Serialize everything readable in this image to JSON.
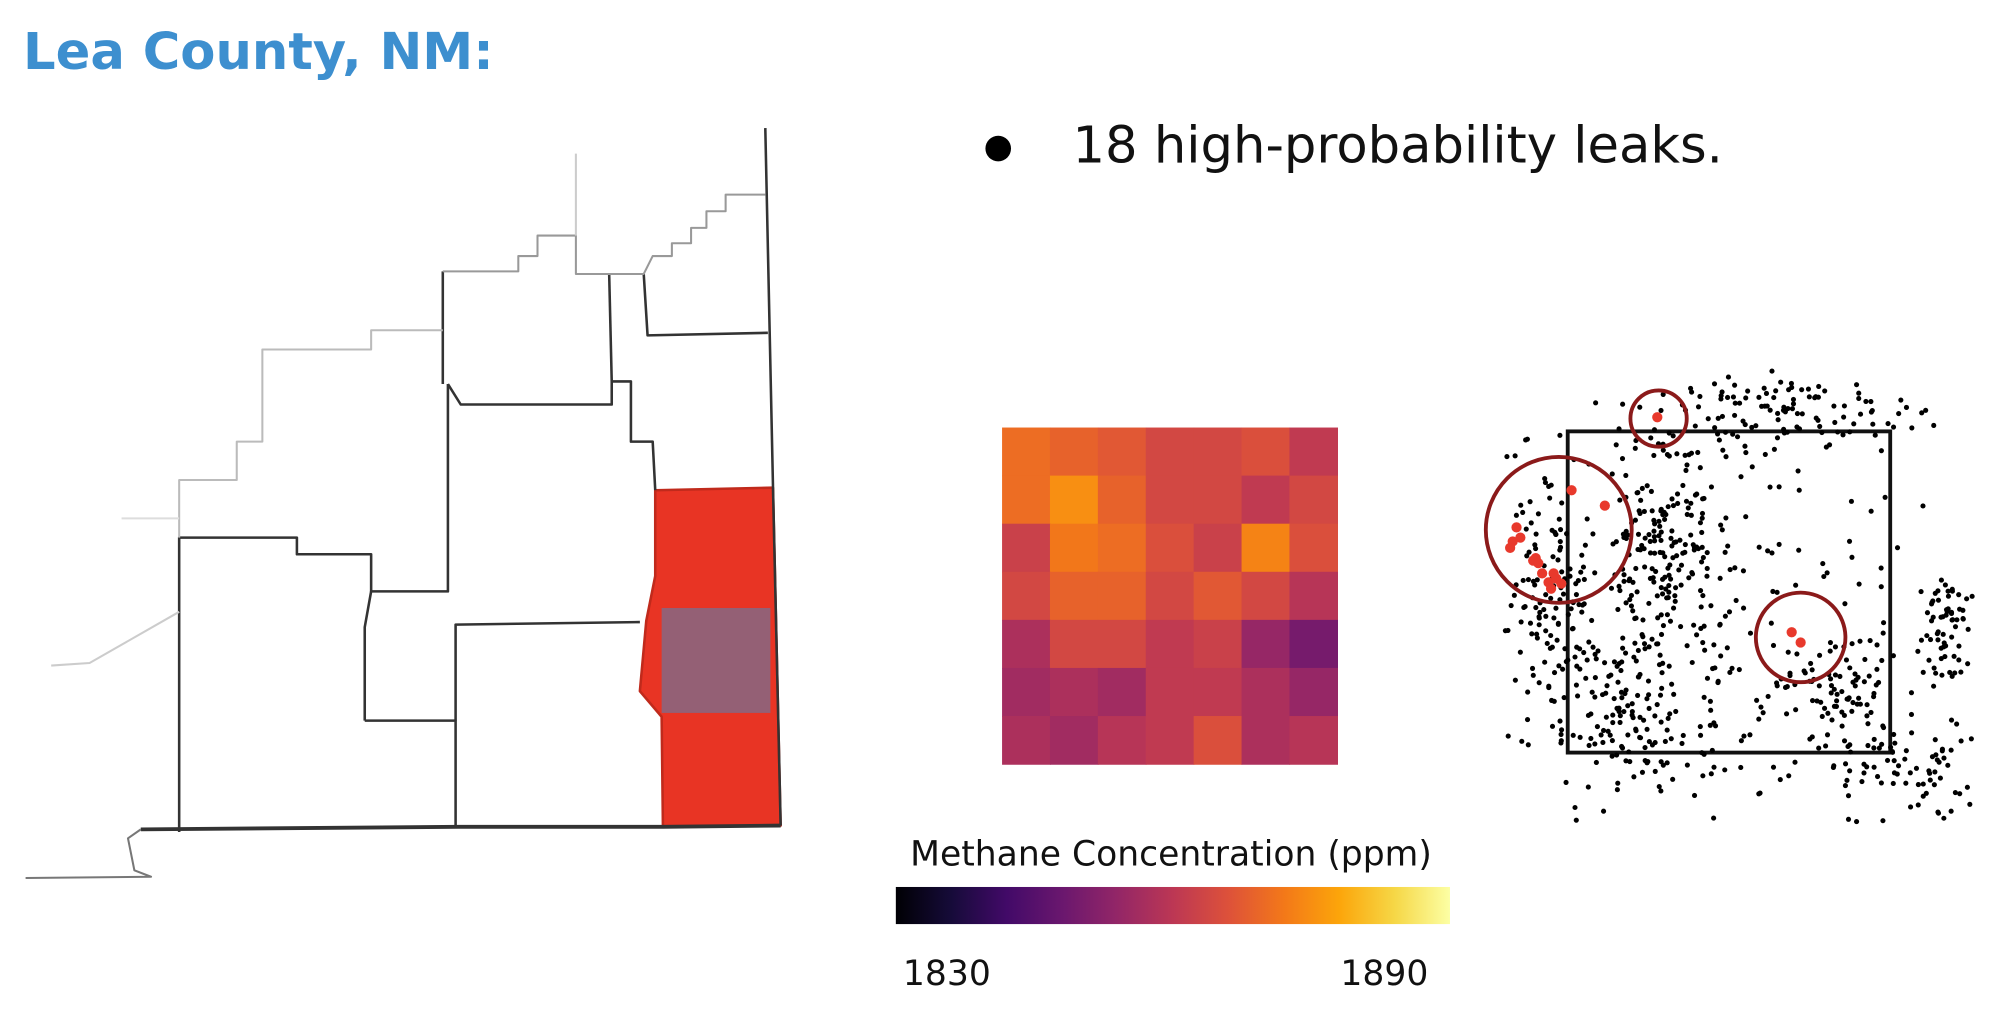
{
  "header": {
    "title": "Lea County, NM:"
  },
  "bullets": [
    "18 high-probability leaks."
  ],
  "chart_data": {
    "type": "heatmap",
    "colorbar_label": "Methane Concentration (ppm)",
    "clim": [
      1823,
      1899
    ],
    "cticks": [
      1830,
      1890
    ],
    "colormap": "inferno",
    "values": [
      [
        1874,
        1872,
        1870,
        1866,
        1866,
        1868,
        1862
      ],
      [
        1874,
        1880,
        1872,
        1866,
        1866,
        1862,
        1866
      ],
      [
        1864,
        1876,
        1874,
        1868,
        1864,
        1878,
        1868
      ],
      [
        1866,
        1872,
        1872,
        1866,
        1870,
        1866,
        1860
      ],
      [
        1858,
        1866,
        1866,
        1862,
        1864,
        1854,
        1848
      ],
      [
        1856,
        1858,
        1856,
        1862,
        1862,
        1858,
        1854
      ],
      [
        1858,
        1856,
        1860,
        1862,
        1868,
        1858,
        1860
      ]
    ]
  }
}
